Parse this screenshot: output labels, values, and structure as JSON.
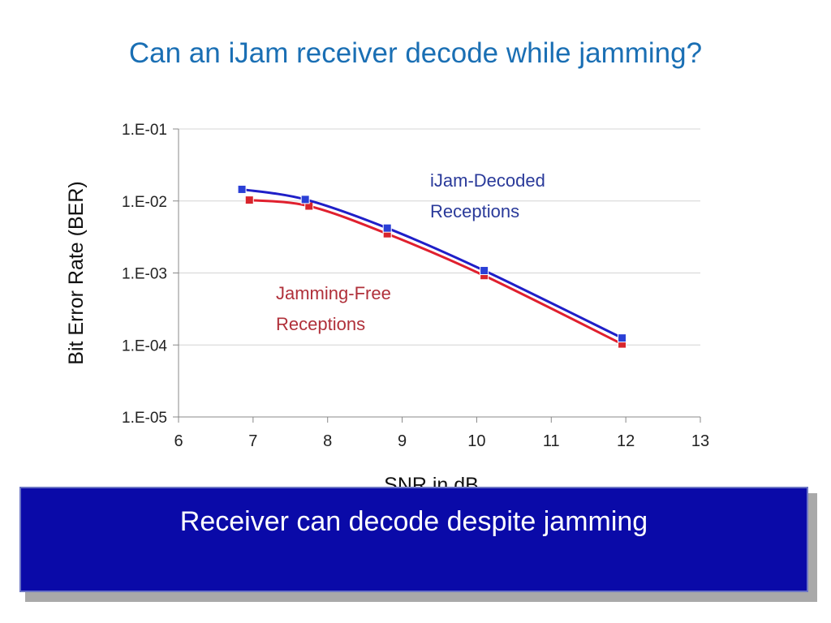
{
  "slide": {
    "title": "Can an iJam receiver decode while jamming?",
    "callout_text": "Receiver can decode despite jamming"
  },
  "chart_data": {
    "type": "line",
    "xlabel": "SNR in dB",
    "ylabel": "Bit Error Rate (BER)",
    "xlim": [
      6,
      13
    ],
    "x_ticks": [
      "6",
      "7",
      "8",
      "9",
      "10",
      "11",
      "12",
      "13"
    ],
    "y_scale": "log",
    "ylim": [
      1e-05,
      0.1
    ],
    "y_ticks": [
      "1.E-01",
      "1.E-02",
      "1.E-03",
      "1.E-04",
      "1.E-05"
    ],
    "grid": "horizontal",
    "series": [
      {
        "name": "iJam-Decoded Receptions",
        "label_lines": [
          "iJam-Decoded",
          "Receptions"
        ],
        "color": "#1f1fc8",
        "marker_color": "#2a3fd6",
        "x": [
          6.85,
          7.7,
          8.8,
          10.1,
          11.95
        ],
        "y": [
          0.0145,
          0.0105,
          0.0042,
          0.00108,
          0.000125
        ]
      },
      {
        "name": "Jamming-Free Receptions",
        "label_lines": [
          "Jamming-Free",
          "Receptions"
        ],
        "color": "#e0202e",
        "marker_color": "#d8252c",
        "x": [
          6.95,
          7.75,
          8.8,
          10.1,
          11.95
        ],
        "y": [
          0.0103,
          0.0085,
          0.0035,
          0.00092,
          0.000103
        ]
      }
    ]
  }
}
